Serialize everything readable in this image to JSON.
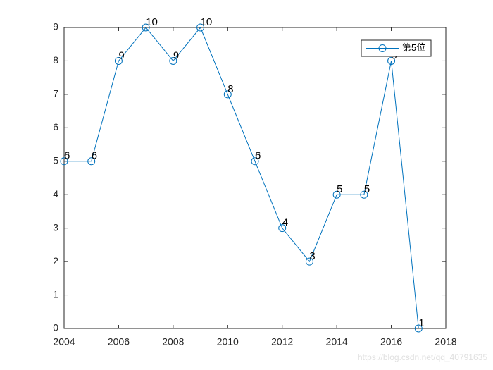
{
  "chart_data": {
    "type": "line",
    "x": [
      2004,
      2005,
      2006,
      2007,
      2008,
      2009,
      2010,
      2011,
      2012,
      2013,
      2014,
      2015,
      2016,
      2017
    ],
    "series": [
      {
        "name": "第5位",
        "color": "#0072bd",
        "values": [
          5,
          5,
          8,
          9,
          8,
          9,
          7,
          5,
          3,
          2,
          4,
          4,
          8,
          0
        ]
      }
    ],
    "point_labels": [
      "6",
      "6",
      "9",
      "10",
      "9",
      "10",
      "8",
      "6",
      "4",
      "3",
      "5",
      "5",
      "9",
      "1"
    ],
    "xlim": [
      2004,
      2018
    ],
    "xticks": [
      2004,
      2006,
      2008,
      2010,
      2012,
      2014,
      2016,
      2018
    ],
    "ylim": [
      0,
      9
    ],
    "yticks": [
      0,
      1,
      2,
      3,
      4,
      5,
      6,
      7,
      8,
      9
    ],
    "legend": "top-right",
    "watermark": "https://blog.csdn.net/qq_40791635"
  }
}
